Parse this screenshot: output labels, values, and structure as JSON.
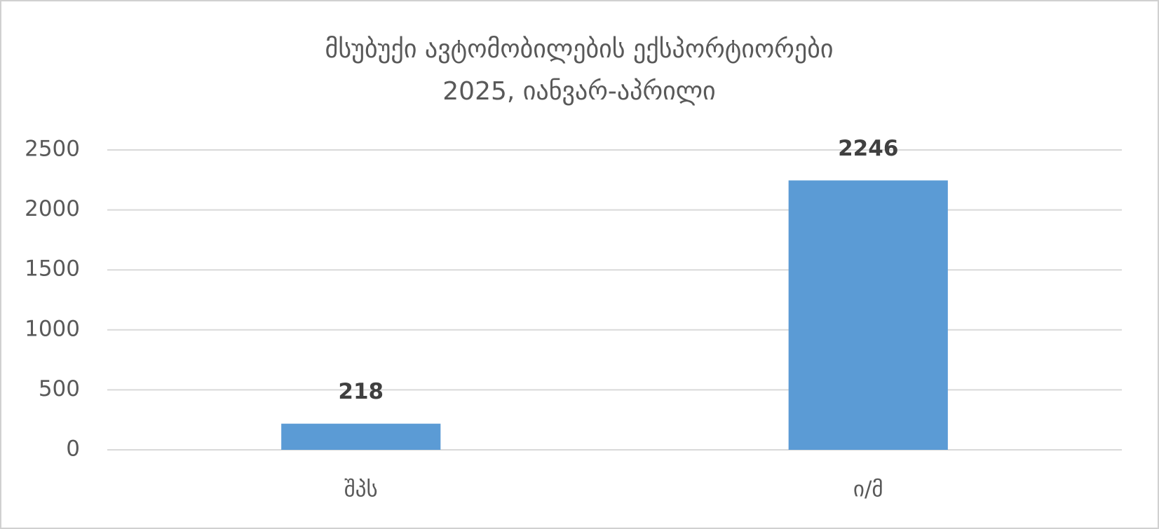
{
  "chart_data": {
    "type": "bar",
    "title": [
      "მსუბუქი ავტომობილების ექსპორტიორები",
      "2025, იანვარ-აპრილი"
    ],
    "categories": [
      "შპს",
      "ი/მ"
    ],
    "values": [
      218,
      2246
    ],
    "color": "#5b9bd5",
    "ylim": [
      0,
      2500
    ],
    "yticks": [
      0,
      500,
      1000,
      1500,
      2000,
      2500
    ],
    "grid": true
  }
}
